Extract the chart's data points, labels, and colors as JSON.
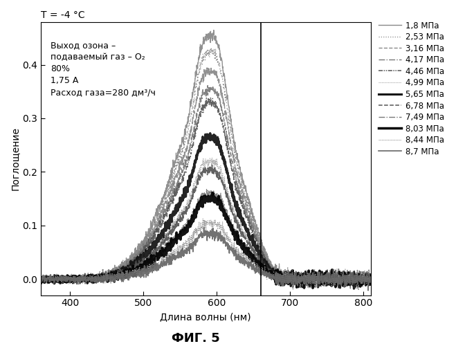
{
  "title": "T = -4 °C",
  "xlabel": "Длина волны (нм)",
  "ylabel": "Поглощение",
  "fig_label": "ФИГ. 5",
  "annotation_line1": "Выход озона –",
  "annotation_line2": "подаваемый газ – O₂",
  "annotation_line3": "80%",
  "annotation_line4": "1,75 А",
  "annotation_line5": "Расход газа=280 дм³/ч",
  "xlim": [
    360,
    810
  ],
  "ylim": [
    -0.03,
    0.48
  ],
  "xticks": [
    400,
    500,
    600,
    700,
    800
  ],
  "yticks": [
    0.0,
    0.1,
    0.2,
    0.3,
    0.4
  ],
  "vertical_line_x": 660,
  "series": [
    {
      "label": "1,8 МПа",
      "peak": 0.455,
      "ls": "-",
      "color": "#888888",
      "lw": 1.0
    },
    {
      "label": "2,53 МПа",
      "peak": 0.425,
      "ls": "dots",
      "color": "#888888",
      "lw": 0.9
    },
    {
      "label": "3,16 МПа",
      "peak": 0.39,
      "ls": "dash",
      "color": "#888888",
      "lw": 1.0
    },
    {
      "label": "4,17 МПа",
      "peak": 0.355,
      "ls": "dashdot",
      "color": "#777777",
      "lw": 1.0
    },
    {
      "label": "4,46 МПа",
      "peak": 0.33,
      "ls": "dashdotdot",
      "color": "#555555",
      "lw": 1.1
    },
    {
      "label": "4,99 МПа",
      "peak": 0.22,
      "ls": "densedots",
      "color": "#aaaaaa",
      "lw": 0.8
    },
    {
      "label": "5,65 МПа",
      "peak": 0.265,
      "ls": "-",
      "color": "#111111",
      "lw": 2.2
    },
    {
      "label": "6,78 МПа",
      "peak": 0.205,
      "ls": "dash",
      "color": "#555555",
      "lw": 1.1
    },
    {
      "label": "7,49 МПа",
      "peak": 0.16,
      "ls": "dashdot",
      "color": "#777777",
      "lw": 1.0
    },
    {
      "label": "8,03 МПа",
      "peak": 0.15,
      "ls": "-",
      "color": "#000000",
      "lw": 2.5
    },
    {
      "label": "8,44 МПа",
      "peak": 0.105,
      "ls": "densedots",
      "color": "#999999",
      "lw": 0.8
    },
    {
      "label": "8,7 МПа",
      "peak": 0.085,
      "ls": "-",
      "color": "#666666",
      "lw": 1.2
    }
  ]
}
